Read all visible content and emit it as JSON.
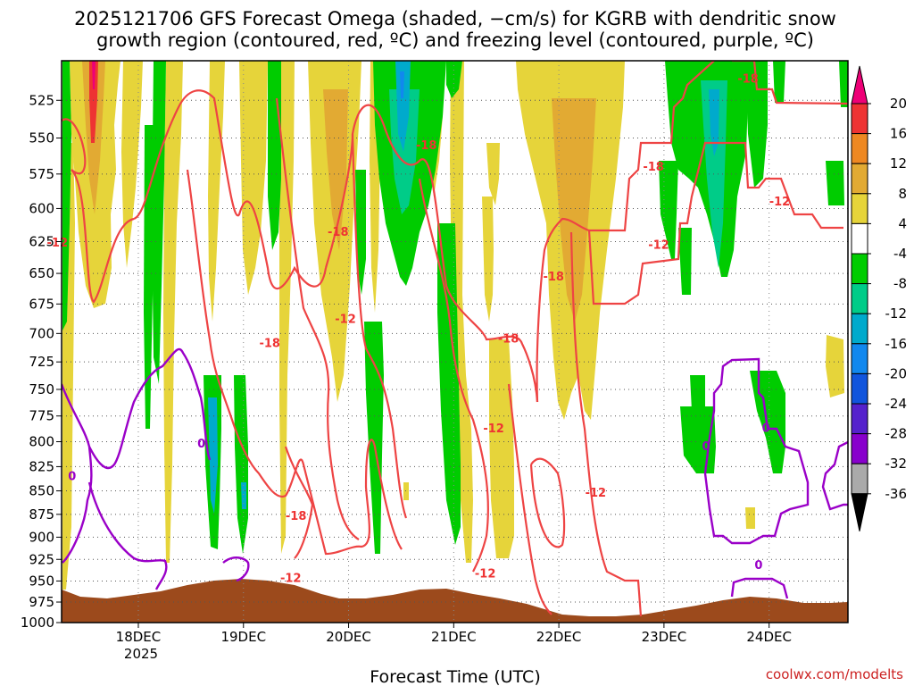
{
  "chart_data": {
    "type": "heatmap",
    "title_lines": [
      "2025121706 GFS Forecast Omega (shaded, −cm/s) for KGRB with dendritic snow",
      "growth region (contoured, red, ºC) and freezing level (contoured, purple, ºC)"
    ],
    "xlabel": "Forecast Time (UTC)",
    "x_ticks": [
      "18DEC",
      "19DEC",
      "20DEC",
      "21DEC",
      "22DEC",
      "23DEC",
      "24DEC"
    ],
    "x_sublabel": "2025",
    "x_range_days": [
      17.27,
      24.75
    ],
    "y_ticks": [
      525,
      550,
      575,
      600,
      625,
      650,
      675,
      700,
      725,
      750,
      775,
      800,
      825,
      850,
      875,
      900,
      925,
      950,
      975,
      1000
    ],
    "y_range_hpa": [
      500,
      1000
    ],
    "y_scale": "log",
    "colorbar": {
      "labels": [
        "20",
        "16",
        "12",
        "8",
        "4",
        "-4",
        "-8",
        "-12",
        "-16",
        "-20",
        "-24",
        "-28",
        "-32",
        "-36"
      ],
      "colors": [
        "#ee0077",
        "#ee3333",
        "#ee8822",
        "#e2aa33",
        "#e6d43a",
        "#ffffff",
        "#00cc00",
        "#00cc88",
        "#00aacc",
        "#1188ee",
        "#1155dd",
        "#5522cc",
        "#8800cc",
        "#aaaaaa",
        "#000000"
      ],
      "top_color": "#ee0077"
    },
    "dgz_contour_labels": [
      {
        "text": "-12",
        "day": 17.23,
        "hpa": 628
      },
      {
        "text": "-18",
        "day": 19.25,
        "hpa": 711
      },
      {
        "text": "-18",
        "day": 19.9,
        "hpa": 620
      },
      {
        "text": "-12",
        "day": 19.97,
        "hpa": 690
      },
      {
        "text": "-18",
        "day": 19.5,
        "hpa": 880
      },
      {
        "text": "-12",
        "day": 19.45,
        "hpa": 950
      },
      {
        "text": "-18",
        "day": 20.74,
        "hpa": 557
      },
      {
        "text": "-18",
        "day": 21.52,
        "hpa": 707
      },
      {
        "text": "-12",
        "day": 21.38,
        "hpa": 790
      },
      {
        "text": "-12",
        "day": 21.3,
        "hpa": 945
      },
      {
        "text": "-18",
        "day": 21.95,
        "hpa": 655
      },
      {
        "text": "-12",
        "day": 22.35,
        "hpa": 855
      },
      {
        "text": "-18",
        "day": 22.9,
        "hpa": 572
      },
      {
        "text": "-12",
        "day": 22.95,
        "hpa": 630
      },
      {
        "text": "-18",
        "day": 23.8,
        "hpa": 513
      },
      {
        "text": "-12",
        "day": 24.1,
        "hpa": 597
      }
    ],
    "freezing_contour_labels": [
      {
        "text": "0",
        "day": 17.37,
        "hpa": 835
      },
      {
        "text": "0",
        "day": 18.6,
        "hpa": 802
      },
      {
        "text": "0",
        "day": 23.4,
        "hpa": 805
      },
      {
        "text": "0",
        "day": 23.97,
        "hpa": 787
      },
      {
        "text": "0",
        "day": 23.9,
        "hpa": 932
      }
    ]
  },
  "credit": "coolwx.com/modelts",
  "colors": {
    "terrain": "#9c4a1c",
    "dgz_contour": "#ee4444",
    "freezing_contour": "#9a00c8"
  }
}
